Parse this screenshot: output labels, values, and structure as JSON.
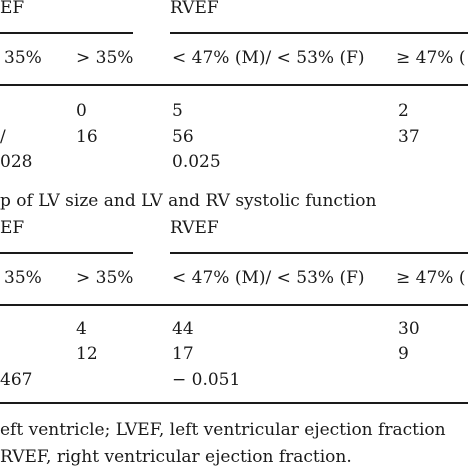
{
  "table_top": {
    "header": {
      "lvef": "EF",
      "rvef": "RVEF"
    },
    "subheader": {
      "lvef_low": "35%",
      "lvef_high": "> 35%",
      "rvef_low": "< 47% (M)/ < 53% (F)",
      "rvef_high": "≥ 47% ("
    },
    "rows": [
      {
        "lvef_high": "0",
        "rvef_low": "5",
        "rvef_high": "2"
      },
      {
        "label": "/",
        "lvef_high": "16",
        "rvef_low": "56",
        "rvef_high": "37"
      },
      {
        "label": "028",
        "rvef_low": "0.025"
      }
    ]
  },
  "caption": "p of LV size and LV and RV systolic function",
  "table_bottom": {
    "header": {
      "lvef": "EF",
      "rvef": "RVEF"
    },
    "subheader": {
      "lvef_low": "35%",
      "lvef_high": "> 35%",
      "rvef_low": "< 47% (M)/ < 53% (F)",
      "rvef_high": "≥ 47% ("
    },
    "rows": [
      {
        "lvef_high": "4",
        "rvef_low": "44",
        "rvef_high": "30"
      },
      {
        "lvef_high": "12",
        "rvef_low": "17",
        "rvef_high": "9"
      },
      {
        "label": "467",
        "rvef_low": "− 0.051"
      }
    ]
  },
  "footnote": {
    "line1": "eft ventricle; LVEF, left ventricular ejection fraction",
    "line2": "RVEF, right ventricular ejection fraction."
  }
}
